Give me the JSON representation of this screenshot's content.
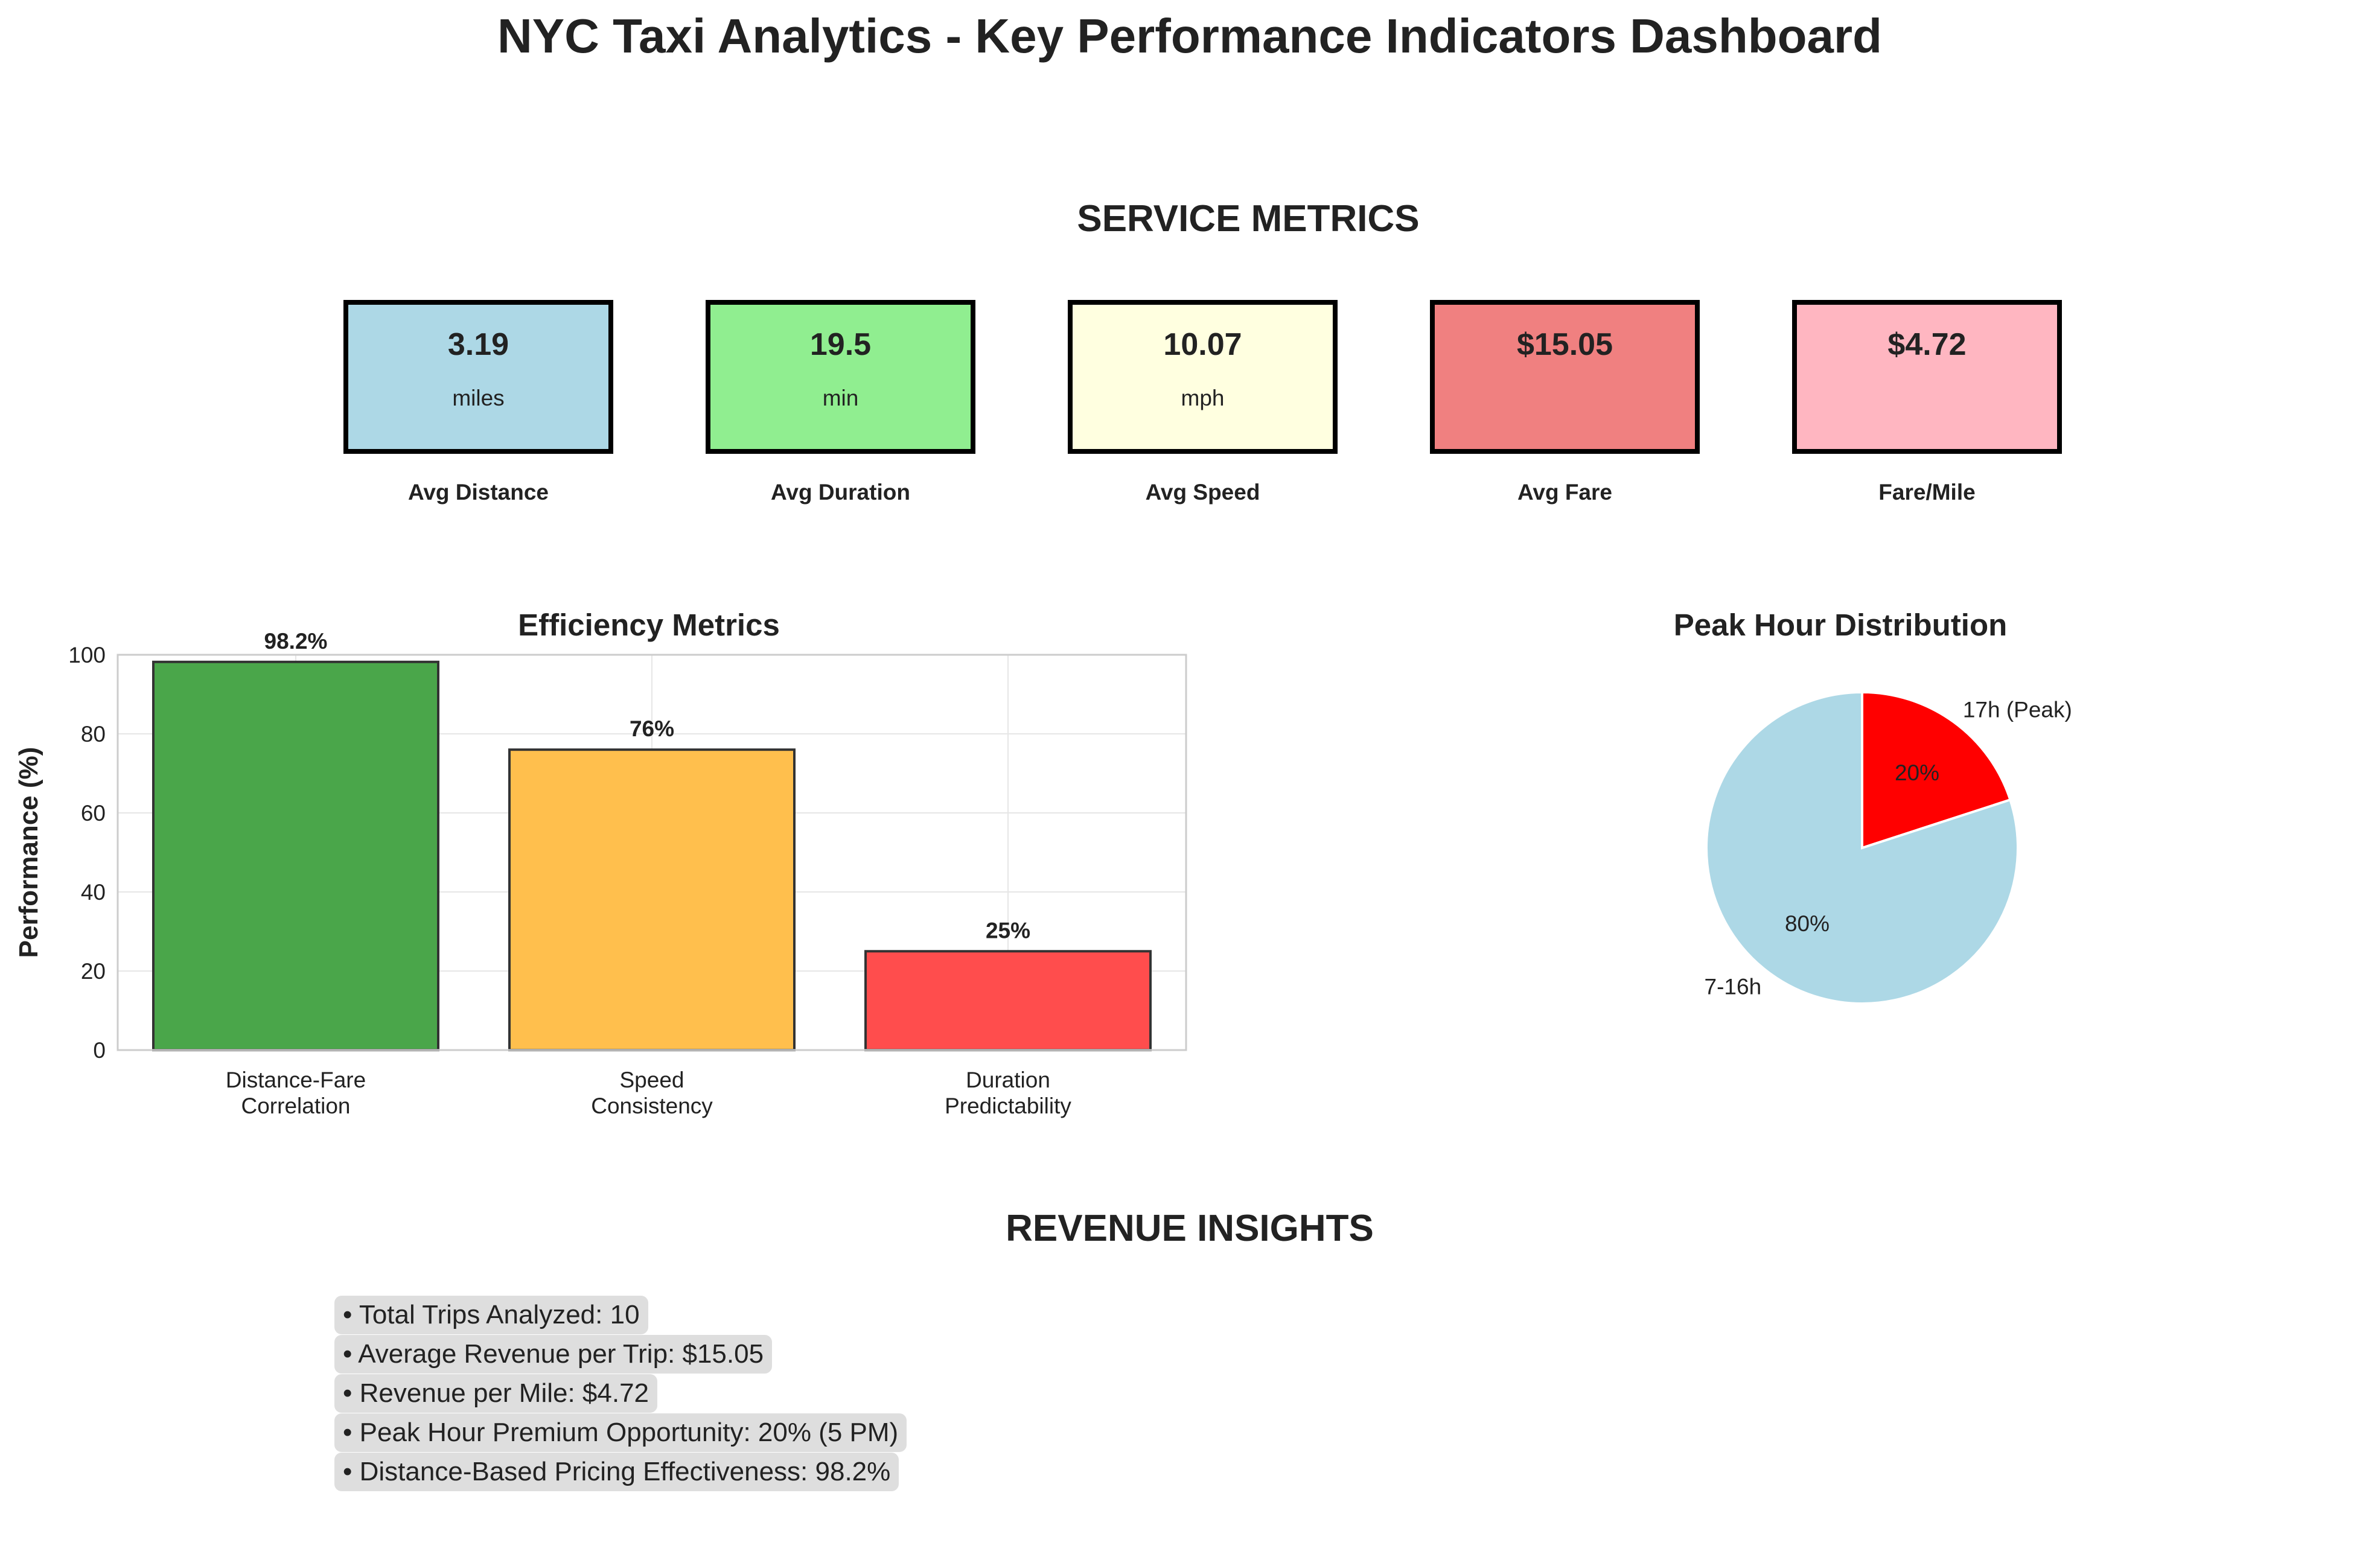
{
  "dashboard": {
    "title": "NYC Taxi Analytics - Key Performance Indicators Dashboard"
  },
  "service_metrics": {
    "title": "SERVICE METRICS",
    "cards": [
      {
        "value": "3.19",
        "unit": "miles",
        "label": "Avg Distance",
        "color": "#add8e6"
      },
      {
        "value": "19.5",
        "unit": "min",
        "label": "Avg Duration",
        "color": "#90ee90"
      },
      {
        "value": "10.07",
        "unit": "mph",
        "label": "Avg Speed",
        "color": "#ffffe0"
      },
      {
        "value": "$15.05",
        "unit": "",
        "label": "Avg Fare",
        "color": "#f08080"
      },
      {
        "value": "$4.72",
        "unit": "",
        "label": "Fare/Mile",
        "color": "#ffb6c1"
      }
    ]
  },
  "chart_data": [
    {
      "type": "bar",
      "title": "Efficiency Metrics",
      "xlabel": "",
      "ylabel": "Performance (%)",
      "ylim": [
        0,
        100
      ],
      "yticks": [
        0,
        20,
        40,
        60,
        80,
        100
      ],
      "grid": true,
      "categories": [
        [
          "Distance-Fare",
          "Correlation"
        ],
        [
          "Speed",
          "Consistency"
        ],
        [
          "Duration",
          "Predictability"
        ]
      ],
      "values": [
        98.2,
        76,
        25
      ],
      "data_labels": [
        "98.2%",
        "76%",
        "25%"
      ],
      "colors": [
        "#4aa64a",
        "#ffbf4d",
        "#ff4d4d"
      ]
    },
    {
      "type": "pie",
      "title": "Peak Hour Distribution",
      "labels": [
        "17h (Peak)",
        "7-16h"
      ],
      "values": [
        20,
        80
      ],
      "pct_labels": [
        "20%",
        "80%"
      ],
      "colors": [
        "#ff0000",
        "#add8e6"
      ]
    }
  ],
  "revenue_insights": {
    "title": "REVENUE INSIGHTS",
    "items": [
      "• Total Trips Analyzed: 10",
      "• Average Revenue per Trip: $15.05",
      "• Revenue per Mile: $4.72",
      "• Peak Hour Premium Opportunity: 20% (5 PM)",
      "• Distance-Based Pricing Effectiveness: 98.2%"
    ]
  }
}
